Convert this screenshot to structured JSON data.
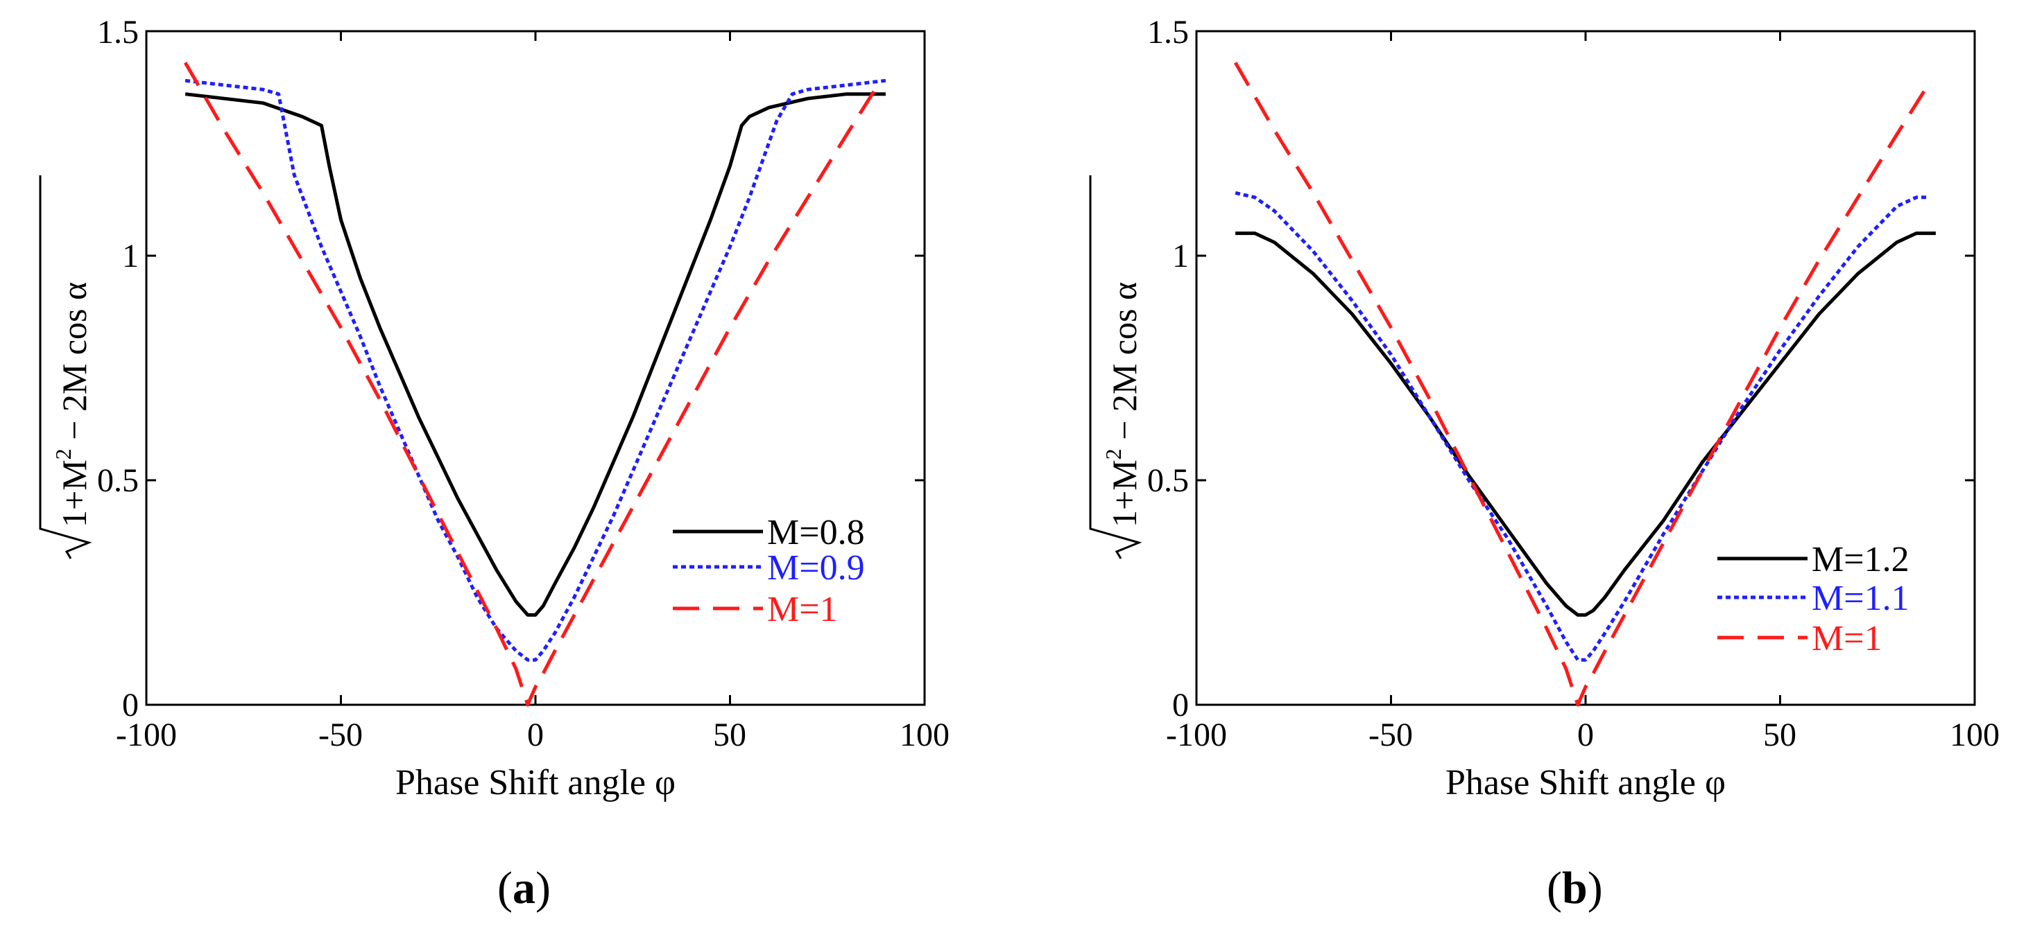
{
  "colors": {
    "black": "#000000",
    "blue": "#1f1fff",
    "red": "#ff1a1a"
  },
  "chart_data": [
    {
      "type": "line",
      "panel_label": "a",
      "xlabel": "Phase Shift angle φ",
      "ylabel": {
        "sqrt_body": "1+M",
        "sup": "2",
        "rest": " − 2M cos α"
      },
      "xlim": [
        -100,
        100
      ],
      "ylim": [
        0,
        1.5
      ],
      "xticks": [
        -100,
        -50,
        0,
        50,
        100
      ],
      "xtick_labels": [
        "-100",
        "-50",
        "0",
        "50",
        "100"
      ],
      "yticks": [
        0,
        0.5,
        1,
        1.5
      ],
      "ytick_labels": [
        "0",
        "0.5",
        "1",
        "1.5"
      ],
      "legend_position": "right",
      "series": [
        {
          "name": "M=0.8",
          "style": "solid",
          "color": "#000000",
          "x": [
            -90,
            -80,
            -70,
            -60,
            -55,
            -53,
            -50,
            -45,
            -40,
            -35,
            -30,
            -25,
            -20,
            -15,
            -10,
            -5,
            -2,
            0,
            2,
            5,
            10,
            15,
            20,
            25,
            30,
            35,
            40,
            45,
            50,
            53,
            55,
            60,
            70,
            80,
            90
          ],
          "y": [
            1.36,
            1.35,
            1.34,
            1.31,
            1.29,
            1.2,
            1.08,
            0.95,
            0.84,
            0.74,
            0.64,
            0.55,
            0.46,
            0.38,
            0.3,
            0.23,
            0.2,
            0.2,
            0.22,
            0.27,
            0.35,
            0.44,
            0.54,
            0.64,
            0.75,
            0.86,
            0.97,
            1.08,
            1.2,
            1.29,
            1.31,
            1.33,
            1.35,
            1.36,
            1.36
          ]
        },
        {
          "name": "M=0.9",
          "style": "dotted",
          "color": "#1f1fff",
          "x": [
            -90,
            -80,
            -70,
            -66,
            -62,
            -55,
            -50,
            -45,
            -40,
            -35,
            -30,
            -25,
            -20,
            -15,
            -10,
            -5,
            -2,
            0,
            2,
            5,
            10,
            15,
            20,
            25,
            30,
            35,
            40,
            45,
            50,
            55,
            62,
            66,
            70,
            80,
            90
          ],
          "y": [
            1.39,
            1.38,
            1.37,
            1.36,
            1.18,
            1.02,
            0.92,
            0.82,
            0.71,
            0.61,
            0.51,
            0.41,
            0.33,
            0.24,
            0.17,
            0.12,
            0.1,
            0.1,
            0.12,
            0.16,
            0.24,
            0.33,
            0.42,
            0.52,
            0.62,
            0.72,
            0.82,
            0.92,
            1.02,
            1.13,
            1.3,
            1.36,
            1.37,
            1.38,
            1.39
          ]
        },
        {
          "name": "M=1",
          "style": "dashed",
          "color": "#ff1a1a",
          "x": [
            -90,
            -80,
            -70,
            -60,
            -50,
            -40,
            -30,
            -20,
            -10,
            -5,
            -2,
            0,
            2,
            5,
            10,
            20,
            30,
            40,
            50,
            60,
            70,
            80,
            88
          ],
          "y": [
            1.43,
            1.28,
            1.14,
            0.99,
            0.84,
            0.68,
            0.51,
            0.34,
            0.17,
            0.08,
            0.0,
            0.04,
            0.07,
            0.12,
            0.2,
            0.36,
            0.52,
            0.68,
            0.84,
            0.99,
            1.13,
            1.27,
            1.38
          ]
        }
      ]
    },
    {
      "type": "line",
      "panel_label": "b",
      "xlabel": "Phase Shift angle φ",
      "ylabel": {
        "sqrt_body": "1+M",
        "sup": "2",
        "rest": " − 2M cos α"
      },
      "xlim": [
        -100,
        100
      ],
      "ylim": [
        0,
        1.5
      ],
      "xticks": [
        -100,
        -50,
        0,
        50,
        100
      ],
      "xtick_labels": [
        "-100",
        "-50",
        "0",
        "50",
        "100"
      ],
      "yticks": [
        0,
        0.5,
        1,
        1.5
      ],
      "ytick_labels": [
        "0",
        "0.5",
        "1",
        "1.5"
      ],
      "legend_position": "lower-right",
      "series": [
        {
          "name": "M=1.2",
          "style": "solid",
          "color": "#000000",
          "x": [
            -90,
            -85,
            -80,
            -70,
            -60,
            -50,
            -40,
            -30,
            -20,
            -10,
            -5,
            -2,
            0,
            2,
            5,
            10,
            20,
            30,
            40,
            50,
            60,
            70,
            80,
            85,
            90
          ],
          "y": [
            1.05,
            1.05,
            1.03,
            0.96,
            0.87,
            0.76,
            0.64,
            0.51,
            0.39,
            0.27,
            0.22,
            0.2,
            0.2,
            0.21,
            0.24,
            0.3,
            0.41,
            0.54,
            0.65,
            0.76,
            0.87,
            0.96,
            1.03,
            1.05,
            1.05
          ]
        },
        {
          "name": "M=1.1",
          "style": "dotted",
          "color": "#1f1fff",
          "x": [
            -90,
            -85,
            -80,
            -70,
            -60,
            -50,
            -40,
            -30,
            -20,
            -10,
            -5,
            -2,
            0,
            2,
            5,
            10,
            20,
            30,
            40,
            50,
            60,
            70,
            80,
            85,
            88
          ],
          "y": [
            1.14,
            1.13,
            1.1,
            1.01,
            0.9,
            0.78,
            0.64,
            0.5,
            0.37,
            0.22,
            0.14,
            0.1,
            0.1,
            0.12,
            0.16,
            0.23,
            0.38,
            0.52,
            0.66,
            0.79,
            0.91,
            1.02,
            1.11,
            1.13,
            1.13
          ]
        },
        {
          "name": "M=1",
          "style": "dashed",
          "color": "#ff1a1a",
          "x": [
            -90,
            -80,
            -70,
            -60,
            -50,
            -40,
            -30,
            -20,
            -10,
            -5,
            -2,
            0,
            2,
            5,
            10,
            20,
            30,
            40,
            50,
            60,
            70,
            80,
            88
          ],
          "y": [
            1.43,
            1.28,
            1.14,
            0.99,
            0.84,
            0.68,
            0.51,
            0.34,
            0.17,
            0.08,
            0.0,
            0.04,
            0.07,
            0.12,
            0.2,
            0.36,
            0.52,
            0.68,
            0.84,
            0.99,
            1.13,
            1.27,
            1.38
          ]
        }
      ]
    }
  ]
}
